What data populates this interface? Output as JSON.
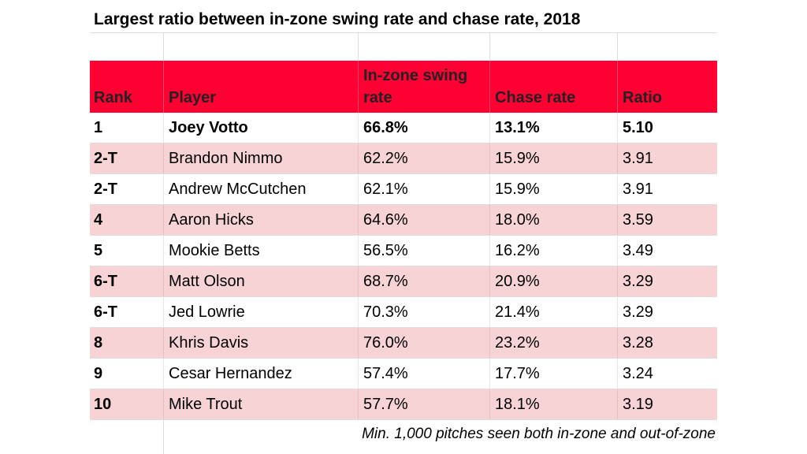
{
  "title": "Largest ratio between in-zone swing rate and chase rate, 2018",
  "colors": {
    "header_bg": "#ff0033",
    "stripe_bg": "#f7d3d6",
    "text": "#000000"
  },
  "table": {
    "headers": {
      "rank": "Rank",
      "player": "Player",
      "inzone": "In-zone swing rate",
      "chase": "Chase rate",
      "ratio": "Ratio"
    },
    "rows": [
      {
        "rank": "1",
        "player": "Joey Votto",
        "inzone": "66.8%",
        "chase": "13.1%",
        "ratio": "5.10"
      },
      {
        "rank": "2-T",
        "player": "Brandon Nimmo",
        "inzone": "62.2%",
        "chase": "15.9%",
        "ratio": "3.91"
      },
      {
        "rank": "2-T",
        "player": "Andrew McCutchen",
        "inzone": "62.1%",
        "chase": "15.9%",
        "ratio": "3.91"
      },
      {
        "rank": "4",
        "player": "Aaron Hicks",
        "inzone": "64.6%",
        "chase": "18.0%",
        "ratio": "3.59"
      },
      {
        "rank": "5",
        "player": "Mookie Betts",
        "inzone": "56.5%",
        "chase": "16.2%",
        "ratio": "3.49"
      },
      {
        "rank": "6-T",
        "player": "Matt Olson",
        "inzone": "68.7%",
        "chase": "20.9%",
        "ratio": "3.29"
      },
      {
        "rank": "6-T",
        "player": "Jed Lowrie",
        "inzone": "70.3%",
        "chase": "21.4%",
        "ratio": "3.29"
      },
      {
        "rank": "8",
        "player": "Khris Davis",
        "inzone": "76.0%",
        "chase": "23.2%",
        "ratio": "3.28"
      },
      {
        "rank": "9",
        "player": "Cesar Hernandez",
        "inzone": "57.4%",
        "chase": "17.7%",
        "ratio": "3.24"
      },
      {
        "rank": "10",
        "player": "Mike Trout",
        "inzone": "57.7%",
        "chase": "18.1%",
        "ratio": "3.19"
      }
    ]
  },
  "footnote": "Min. 1,000 pitches seen both in-zone and out-of-zone"
}
